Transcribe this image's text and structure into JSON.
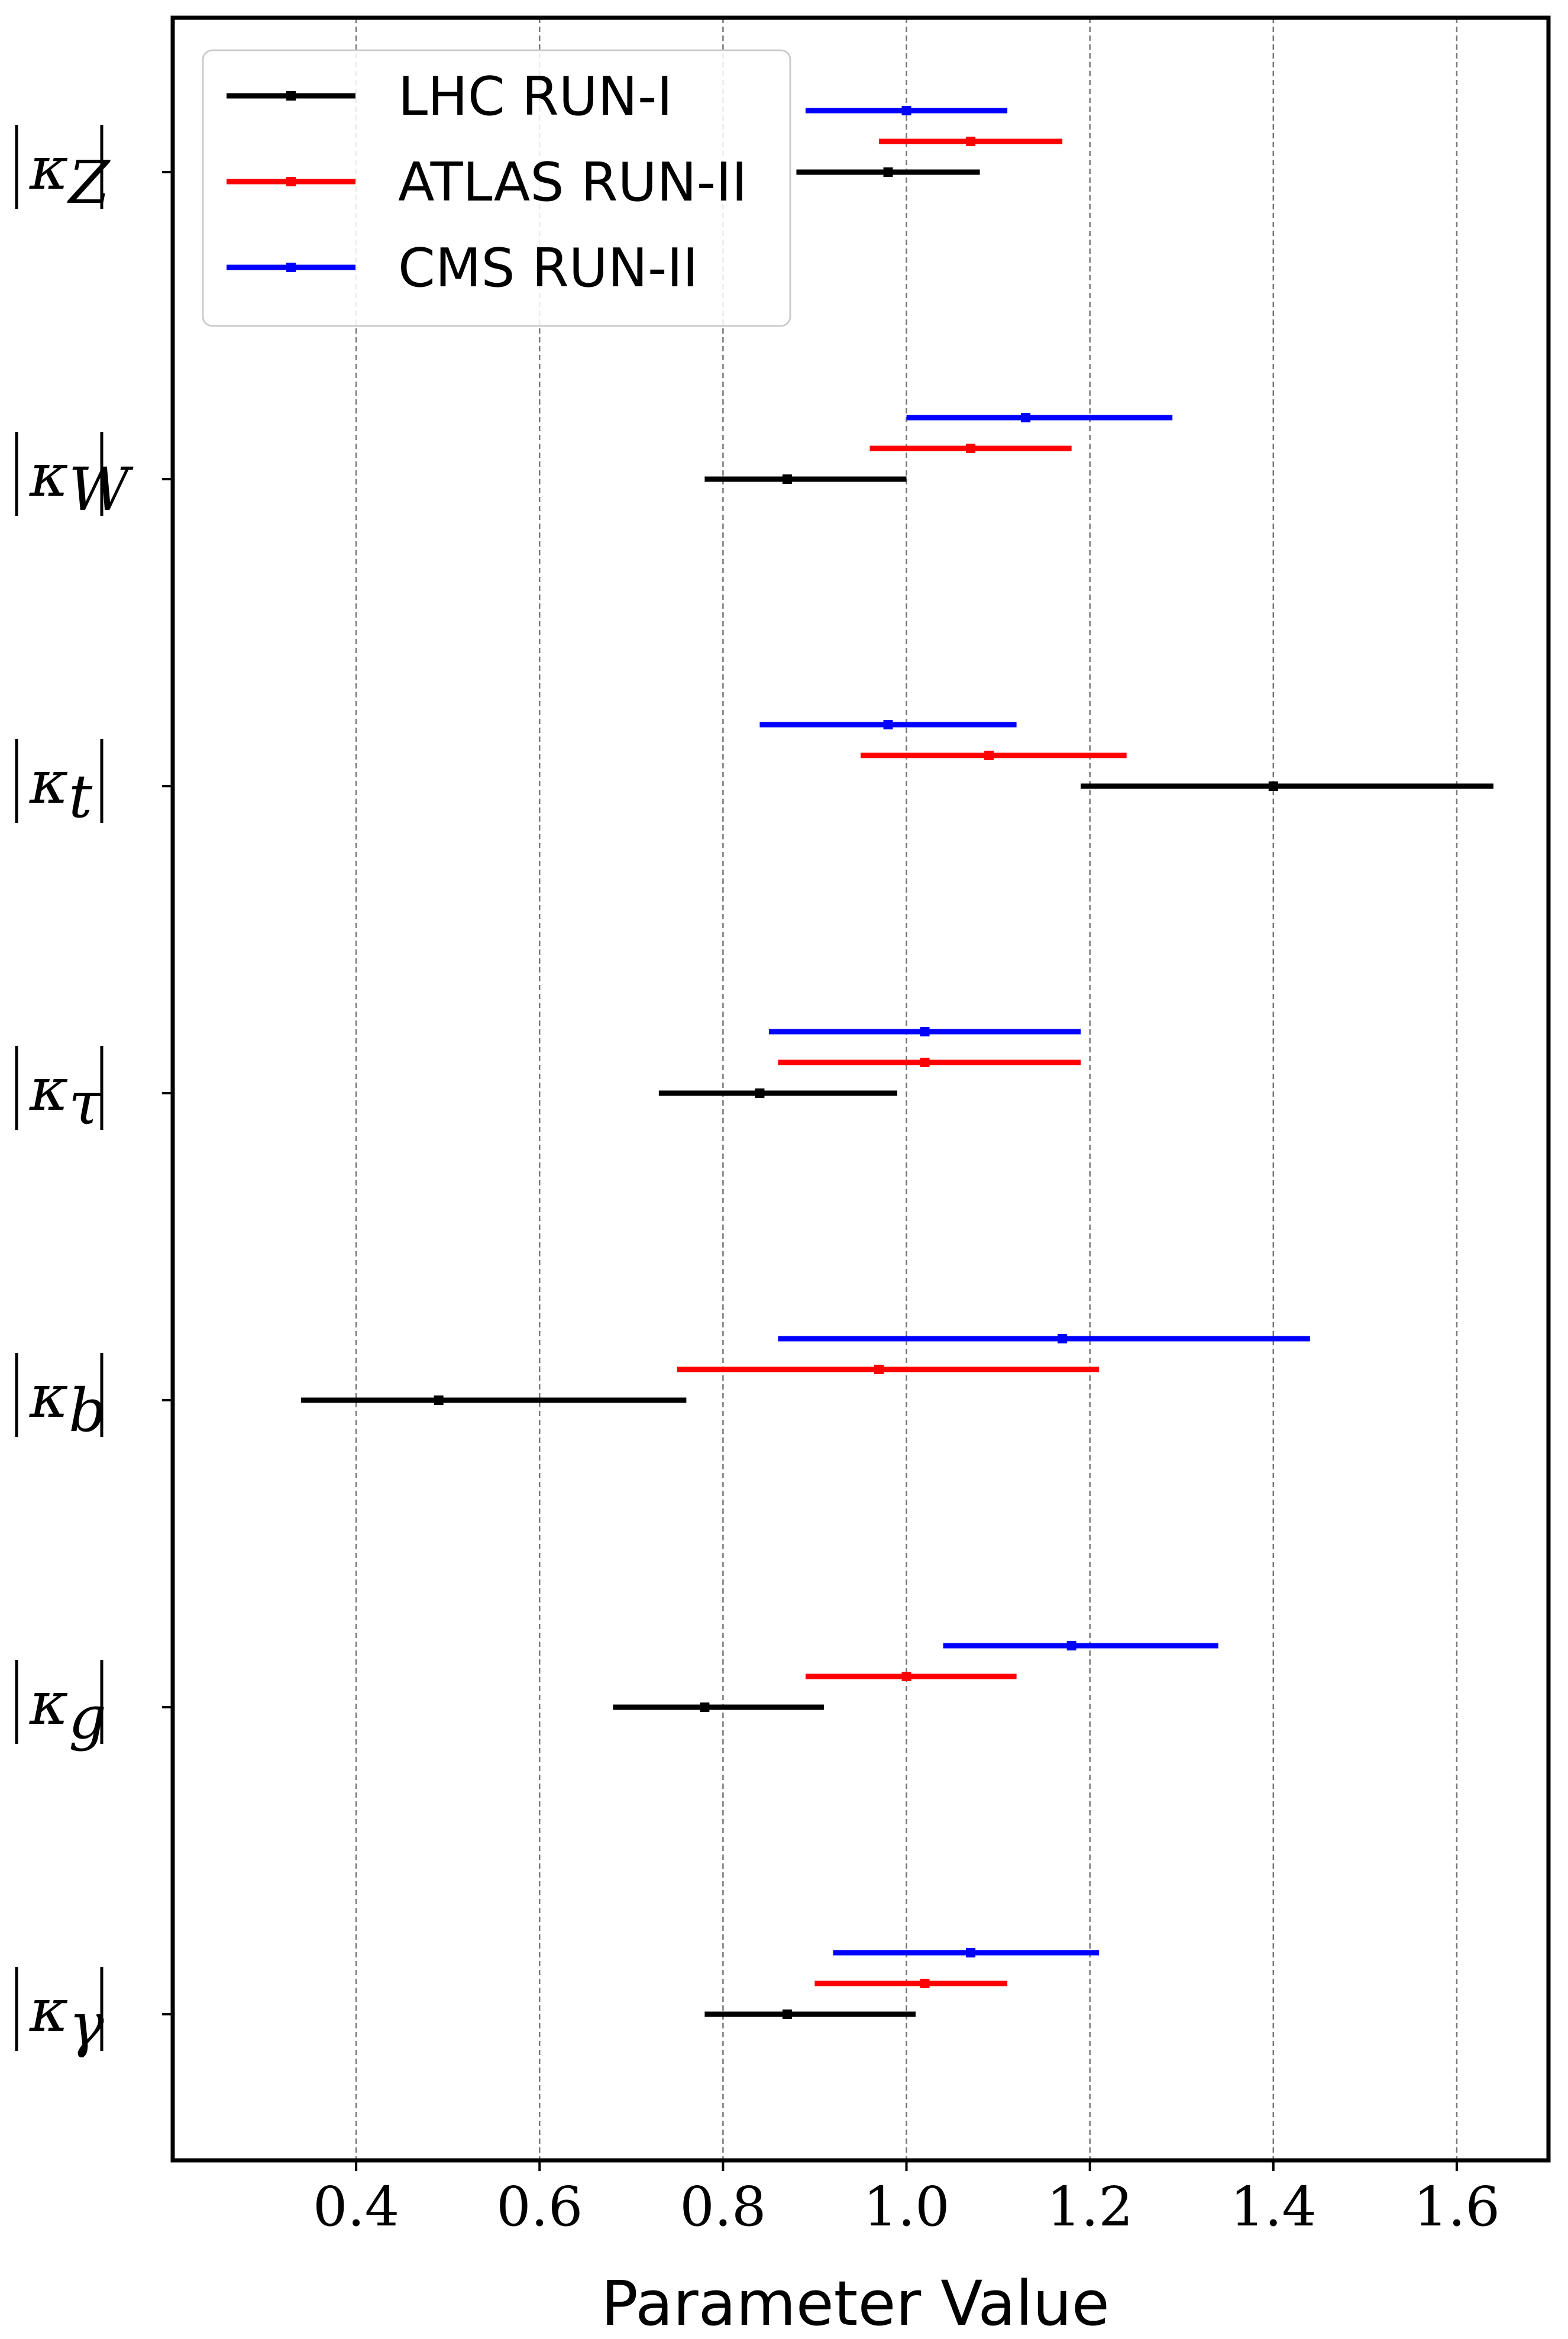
{
  "chart_data": {
    "type": "errorbar",
    "xlabel": "Parameter Value",
    "ylabel": "",
    "title": "",
    "xlim": [
      0.2,
      1.7
    ],
    "xticks": [
      "0.4",
      "0.6",
      "0.8",
      "1.0",
      "1.2",
      "1.4",
      "1.6"
    ],
    "grid": "vertical dashed",
    "legend_position": "top-left",
    "categories": [
      {
        "name": "κZ",
        "base": "κ",
        "sub": "Z"
      },
      {
        "name": "κW",
        "base": "κ",
        "sub": "W"
      },
      {
        "name": "κt",
        "base": "κ",
        "sub": "t"
      },
      {
        "name": "κτ",
        "base": "κ",
        "sub": "τ"
      },
      {
        "name": "κb",
        "base": "κ",
        "sub": "b"
      },
      {
        "name": "κg",
        "base": "κ",
        "sub": "g"
      },
      {
        "name": "κγ",
        "base": "κ",
        "sub": "γ"
      }
    ],
    "series": [
      {
        "name": "LHC RUN-I",
        "color": "#000000",
        "central": [
          0.98,
          0.87,
          1.4,
          0.84,
          0.49,
          0.78,
          0.87
        ],
        "low": [
          0.88,
          0.78,
          1.19,
          0.73,
          0.34,
          0.68,
          0.78
        ],
        "high": [
          1.08,
          1.0,
          1.64,
          0.99,
          0.76,
          0.91,
          1.01
        ]
      },
      {
        "name": "ATLAS RUN-II",
        "color": "#ff0000",
        "central": [
          1.07,
          1.07,
          1.09,
          1.02,
          0.97,
          1.0,
          1.02
        ],
        "low": [
          0.97,
          0.96,
          0.95,
          0.86,
          0.75,
          0.89,
          0.9
        ],
        "high": [
          1.17,
          1.18,
          1.24,
          1.19,
          1.21,
          1.12,
          1.11
        ]
      },
      {
        "name": "CMS RUN-II",
        "color": "#0000ff",
        "central": [
          1.0,
          1.13,
          0.98,
          1.02,
          1.17,
          1.18,
          1.07
        ],
        "low": [
          0.89,
          1.0,
          0.84,
          0.85,
          0.86,
          1.04,
          0.92
        ],
        "high": [
          1.11,
          1.29,
          1.12,
          1.19,
          1.44,
          1.34,
          1.21
        ]
      }
    ]
  }
}
